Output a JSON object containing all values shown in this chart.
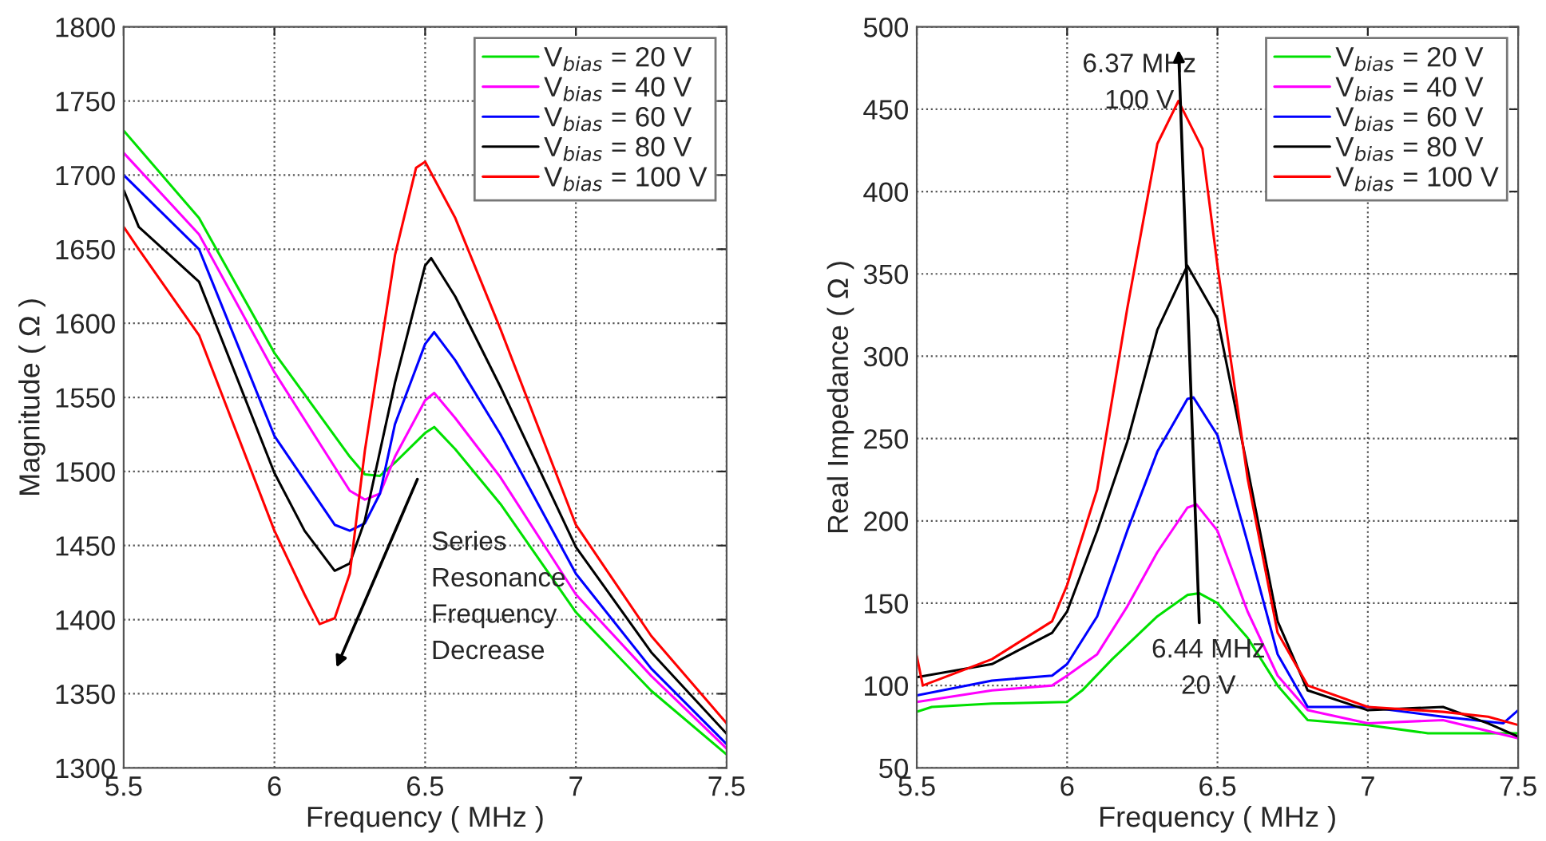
{
  "chart_data": [
    {
      "type": "line",
      "xlabel": "Frequency ( MHz )",
      "ylabel": "Magnitude ( Ω )",
      "xlim": [
        5.5,
        7.5
      ],
      "ylim": [
        1300,
        1800
      ],
      "xticks": [
        5.5,
        6,
        6.5,
        7,
        7.5
      ],
      "yticks": [
        1300,
        1350,
        1400,
        1450,
        1500,
        1550,
        1600,
        1650,
        1700,
        1750,
        1800
      ],
      "grid": true,
      "legend": "top right",
      "line_style": "solid",
      "marker": "none",
      "annotations": [
        "Series\nResonance\nFrequency\nDecrease"
      ],
      "series": [
        {
          "name": "V$_{bias}$ = 20 V",
          "color": "#00e000",
          "x": [
            5.5,
            5.75,
            6.0,
            6.25,
            6.3,
            6.35,
            6.4,
            6.5,
            6.53,
            6.6,
            6.75,
            7.0,
            7.25,
            7.5
          ],
          "values": [
            1730,
            1671,
            1580,
            1510,
            1498,
            1497,
            1506,
            1526,
            1530,
            1515,
            1478,
            1405,
            1352,
            1309
          ]
        },
        {
          "name": "V$_{bias}$ = 40 V",
          "color": "#ff00ff",
          "x": [
            5.5,
            5.75,
            6.0,
            6.25,
            6.3,
            6.35,
            6.4,
            6.5,
            6.53,
            6.6,
            6.75,
            7.0,
            7.25,
            7.5
          ],
          "values": [
            1715,
            1660,
            1567,
            1487,
            1481,
            1485,
            1510,
            1548,
            1553,
            1536,
            1496,
            1417,
            1362,
            1313
          ]
        },
        {
          "name": "V$_{bias}$ = 60 V",
          "color": "#0000ff",
          "x": [
            5.5,
            5.75,
            6.0,
            6.2,
            6.25,
            6.3,
            6.35,
            6.4,
            6.5,
            6.53,
            6.6,
            6.75,
            7.0,
            7.25,
            7.5
          ],
          "values": [
            1700,
            1650,
            1524,
            1464,
            1460,
            1465,
            1485,
            1532,
            1586,
            1594,
            1575,
            1525,
            1431,
            1367,
            1316
          ]
        },
        {
          "name": "V$_{bias}$ = 80 V",
          "color": "#000000",
          "x": [
            5.5,
            5.55,
            5.75,
            6.0,
            6.1,
            6.2,
            6.25,
            6.3,
            6.4,
            6.5,
            6.52,
            6.6,
            6.75,
            7.0,
            7.25,
            7.5
          ],
          "values": [
            1690,
            1665,
            1628,
            1499,
            1460,
            1433,
            1438,
            1467,
            1560,
            1639,
            1644,
            1618,
            1557,
            1449,
            1378,
            1323
          ]
        },
        {
          "name": "V$_{bias}$ = 100 V",
          "color": "#ff0000",
          "x": [
            5.5,
            5.55,
            5.75,
            6.0,
            6.1,
            6.15,
            6.2,
            6.25,
            6.3,
            6.4,
            6.47,
            6.5,
            6.6,
            6.75,
            7.0,
            7.25,
            7.5
          ],
          "values": [
            1665,
            1650,
            1592,
            1460,
            1417,
            1397,
            1401,
            1431,
            1514,
            1646,
            1705,
            1709,
            1671,
            1596,
            1464,
            1389,
            1330
          ]
        }
      ]
    },
    {
      "type": "line",
      "xlabel": "Frequency ( MHz )",
      "ylabel": "Real Impedance ( Ω )",
      "xlim": [
        5.5,
        7.5
      ],
      "ylim": [
        50,
        500
      ],
      "xticks": [
        5.5,
        6,
        6.5,
        7,
        7.5
      ],
      "yticks": [
        50,
        100,
        150,
        200,
        250,
        300,
        350,
        400,
        450,
        500
      ],
      "grid": true,
      "legend": "top right",
      "line_style": "solid",
      "marker": "none",
      "annotations": [
        "6.37 MHz\n100 V",
        "6.44 MHz\n20 V"
      ],
      "series": [
        {
          "name": "V$_{bias}$ = 20 V",
          "color": "#00e000",
          "x": [
            5.5,
            5.55,
            5.75,
            6.0,
            6.05,
            6.15,
            6.3,
            6.4,
            6.44,
            6.5,
            6.6,
            6.7,
            6.8,
            7.0,
            7.2,
            7.5
          ],
          "values": [
            84,
            87,
            89,
            90,
            97,
            116,
            142,
            155,
            156,
            150,
            129,
            100,
            79,
            76,
            71,
            71
          ]
        },
        {
          "name": "V$_{bias}$ = 40 V",
          "color": "#ff00ff",
          "x": [
            5.5,
            5.75,
            5.95,
            6.0,
            6.1,
            6.2,
            6.3,
            6.4,
            6.43,
            6.5,
            6.6,
            6.7,
            6.8,
            7.0,
            7.25,
            7.5
          ],
          "values": [
            90,
            97,
            100,
            106,
            119,
            148,
            181,
            208,
            210,
            194,
            145,
            106,
            85,
            77,
            79,
            68
          ]
        },
        {
          "name": "V$_{bias}$ = 60 V",
          "color": "#0000ff",
          "x": [
            5.5,
            5.75,
            5.95,
            6.0,
            6.1,
            6.2,
            6.3,
            6.4,
            6.42,
            6.5,
            6.6,
            6.7,
            6.8,
            7.0,
            7.25,
            7.45,
            7.5
          ],
          "values": [
            94,
            103,
            106,
            113,
            142,
            194,
            242,
            274,
            275,
            252,
            187,
            119,
            87,
            87,
            81,
            77,
            85
          ]
        },
        {
          "name": "V$_{bias}$ = 80 V",
          "color": "#000000",
          "x": [
            5.5,
            5.75,
            5.95,
            6.0,
            6.1,
            6.2,
            6.3,
            6.4,
            6.5,
            6.6,
            6.7,
            6.8,
            7.0,
            7.25,
            7.4,
            7.5
          ],
          "values": [
            105,
            113,
            132,
            145,
            194,
            248,
            316,
            355,
            323,
            232,
            139,
            97,
            85,
            87,
            77,
            69
          ]
        },
        {
          "name": "V$_{bias}$ = 100 V",
          "color": "#ff0000",
          "x": [
            5.5,
            5.52,
            5.75,
            5.95,
            6.0,
            6.1,
            6.2,
            6.3,
            6.37,
            6.45,
            6.5,
            6.6,
            6.7,
            6.8,
            7.0,
            7.25,
            7.4,
            7.5
          ],
          "values": [
            118,
            100,
            116,
            139,
            161,
            219,
            329,
            429,
            455,
            426,
            355,
            226,
            132,
            100,
            87,
            84,
            81,
            76
          ]
        }
      ]
    }
  ]
}
